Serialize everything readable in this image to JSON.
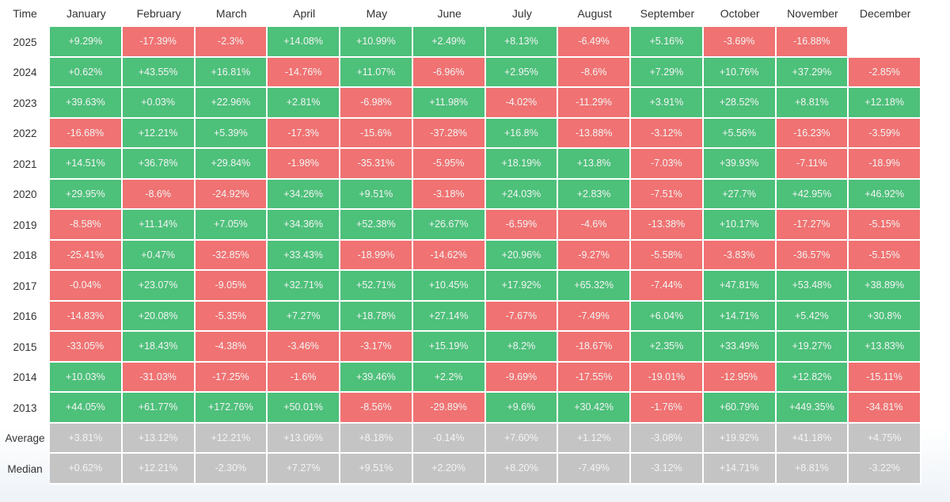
{
  "table": {
    "header": [
      "Time",
      "January",
      "February",
      "March",
      "April",
      "May",
      "June",
      "July",
      "August",
      "September",
      "October",
      "November",
      "December"
    ],
    "rows": [
      {
        "label": "2025",
        "cells": [
          "+9.29%",
          "-17.39%",
          "-2.3%",
          "+14.08%",
          "+10.99%",
          "+2.49%",
          "+8.13%",
          "-6.49%",
          "+5.16%",
          "-3.69%",
          "-16.88%"
        ]
      },
      {
        "label": "2024",
        "cells": [
          "+0.62%",
          "+43.55%",
          "+16.81%",
          "-14.76%",
          "+11.07%",
          "-6.96%",
          "+2.95%",
          "-8.6%",
          "+7.29%",
          "+10.76%",
          "+37.29%",
          "-2.85%"
        ]
      },
      {
        "label": "2023",
        "cells": [
          "+39.63%",
          "+0.03%",
          "+22.96%",
          "+2.81%",
          "-6.98%",
          "+11.98%",
          "-4.02%",
          "-11.29%",
          "+3.91%",
          "+28.52%",
          "+8.81%",
          "+12.18%"
        ]
      },
      {
        "label": "2022",
        "cells": [
          "-16.68%",
          "+12.21%",
          "+5.39%",
          "-17.3%",
          "-15.6%",
          "-37.28%",
          "+16.8%",
          "-13.88%",
          "-3.12%",
          "+5.56%",
          "-16.23%",
          "-3.59%"
        ]
      },
      {
        "label": "2021",
        "cells": [
          "+14.51%",
          "+36.78%",
          "+29.84%",
          "-1.98%",
          "-35.31%",
          "-5.95%",
          "+18.19%",
          "+13.8%",
          "-7.03%",
          "+39.93%",
          "-7.11%",
          "-18.9%"
        ]
      },
      {
        "label": "2020",
        "cells": [
          "+29.95%",
          "-8.6%",
          "-24.92%",
          "+34.26%",
          "+9.51%",
          "-3.18%",
          "+24.03%",
          "+2.83%",
          "-7.51%",
          "+27.7%",
          "+42.95%",
          "+46.92%"
        ]
      },
      {
        "label": "2019",
        "cells": [
          "-8.58%",
          "+11.14%",
          "+7.05%",
          "+34.36%",
          "+52.38%",
          "+26.67%",
          "-6.59%",
          "-4.6%",
          "-13.38%",
          "+10.17%",
          "-17.27%",
          "-5.15%"
        ]
      },
      {
        "label": "2018",
        "cells": [
          "-25.41%",
          "+0.47%",
          "-32.85%",
          "+33.43%",
          "-18.99%",
          "-14.62%",
          "+20.96%",
          "-9.27%",
          "-5.58%",
          "-3.83%",
          "-36.57%",
          "-5.15%"
        ]
      },
      {
        "label": "2017",
        "cells": [
          "-0.04%",
          "+23.07%",
          "-9.05%",
          "+32.71%",
          "+52.71%",
          "+10.45%",
          "+17.92%",
          "+65.32%",
          "-7.44%",
          "+47.81%",
          "+53.48%",
          "+38.89%"
        ]
      },
      {
        "label": "2016",
        "cells": [
          "-14.83%",
          "+20.08%",
          "-5.35%",
          "+7.27%",
          "+18.78%",
          "+27.14%",
          "-7.67%",
          "-7.49%",
          "+6.04%",
          "+14.71%",
          "+5.42%",
          "+30.8%"
        ]
      },
      {
        "label": "2015",
        "cells": [
          "-33.05%",
          "+18.43%",
          "-4.38%",
          "-3.46%",
          "-3.17%",
          "+15.19%",
          "+8.2%",
          "-18.67%",
          "+2.35%",
          "+33.49%",
          "+19.27%",
          "+13.83%"
        ]
      },
      {
        "label": "2014",
        "cells": [
          "+10.03%",
          "-31.03%",
          "-17.25%",
          "-1.6%",
          "+39.46%",
          "+2.2%",
          "-9.69%",
          "-17.55%",
          "-19.01%",
          "-12.95%",
          "+12.82%",
          "-15.11%"
        ]
      },
      {
        "label": "2013",
        "cells": [
          "+44.05%",
          "+61.77%",
          "+172.76%",
          "+50.01%",
          "-8.56%",
          "-29.89%",
          "+9.6%",
          "+30.42%",
          "-1.76%",
          "+60.79%",
          "+449.35%",
          "-34.81%"
        ]
      }
    ],
    "summary_rows": [
      {
        "label": "Average",
        "cells": [
          "+3.81%",
          "+13.12%",
          "+12.21%",
          "+13.06%",
          "+8.18%",
          "-0.14%",
          "+7.60%",
          "+1.12%",
          "-3.08%",
          "+19.92%",
          "+41.18%",
          "+4.75%"
        ]
      },
      {
        "label": "Median",
        "cells": [
          "+0.62%",
          "+12.21%",
          "-2.30%",
          "+7.27%",
          "+9.51%",
          "+2.20%",
          "+8.20%",
          "-7.49%",
          "-3.12%",
          "+14.71%",
          "+8.81%",
          "-3.22%"
        ]
      }
    ]
  }
}
